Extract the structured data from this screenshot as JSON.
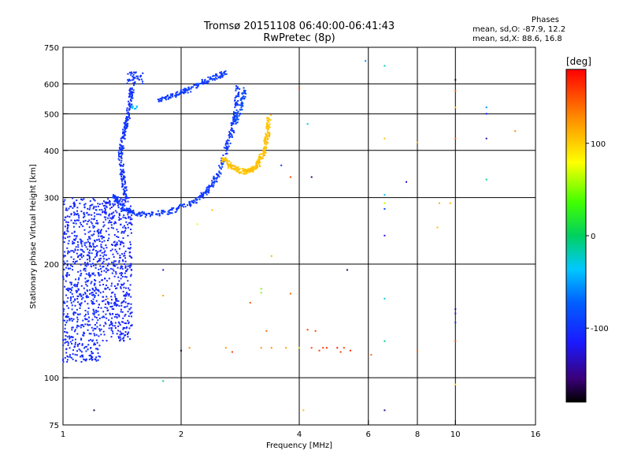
{
  "header": {
    "title_line1": "Tromsø 20151108 06:40:00-06:41:43",
    "title_line2": "RwPretec (8p)",
    "phases_label": "Phases",
    "phases_o": "mean, sd,O: -87.9, 12.2",
    "phases_x": "mean, sd,X:  88.6, 16.8"
  },
  "colorbar": {
    "unit_label": "[deg]",
    "range": [
      -180,
      180
    ],
    "ticks": [
      {
        "value": 100,
        "label": "100"
      },
      {
        "value": 0,
        "label": "0"
      },
      {
        "value": -100,
        "label": "-100"
      }
    ]
  },
  "chart_data": {
    "type": "scatter",
    "title": "Tromsø 20151108 06:40:00-06:41:43",
    "subtitle": "RwPretec (8p)",
    "xlabel": "Frequency [MHz]",
    "ylabel": "Stationary phase Virtual Height [km]",
    "xscale": "log",
    "yscale": "log",
    "xlim": [
      1,
      16
    ],
    "ylim": [
      75,
      750
    ],
    "xticks": [
      1,
      2,
      4,
      6,
      8,
      10,
      16
    ],
    "yticks": [
      75,
      100,
      200,
      300,
      400,
      500,
      600,
      750
    ],
    "xgrid": [
      2,
      4,
      6,
      8,
      10
    ],
    "ygrid": [
      100,
      200,
      300,
      400,
      500,
      600
    ],
    "color_by": "phase [deg]",
    "clusters": [
      {
        "kind": "band",
        "f": [
          1.0,
          1.25
        ],
        "h": [
          110,
          300
        ],
        "phase": -105,
        "n": 700
      },
      {
        "kind": "band",
        "f": [
          1.25,
          1.5
        ],
        "h": [
          125,
          300
        ],
        "phase": -108,
        "n": 500
      },
      {
        "kind": "curve",
        "points": [
          [
            1.45,
            300
          ],
          [
            1.42,
            340
          ],
          [
            1.4,
            390
          ],
          [
            1.42,
            430
          ],
          [
            1.45,
            470
          ],
          [
            1.48,
            530
          ],
          [
            1.5,
            590
          ]
        ],
        "phase": -100,
        "n": 220
      },
      {
        "kind": "curve",
        "points": [
          [
            1.35,
            305
          ],
          [
            1.4,
            285
          ],
          [
            1.5,
            273
          ],
          [
            1.65,
            270
          ],
          [
            1.85,
            275
          ],
          [
            2.05,
            285
          ],
          [
            2.25,
            302
          ],
          [
            2.4,
            325
          ],
          [
            2.5,
            350
          ],
          [
            2.6,
            400
          ],
          [
            2.7,
            450
          ],
          [
            2.75,
            520
          ],
          [
            2.8,
            600
          ]
        ],
        "phase": -96,
        "n": 380
      },
      {
        "kind": "curve",
        "points": [
          [
            1.75,
            545
          ],
          [
            1.9,
            560
          ],
          [
            2.1,
            580
          ],
          [
            2.3,
            610
          ],
          [
            2.5,
            630
          ],
          [
            2.6,
            640
          ]
        ],
        "phase": -95,
        "n": 160
      },
      {
        "kind": "curve",
        "points": [
          [
            2.55,
            380
          ],
          [
            2.7,
            360
          ],
          [
            2.9,
            350
          ],
          [
            3.1,
            360
          ],
          [
            3.25,
            395
          ],
          [
            3.32,
            440
          ],
          [
            3.35,
            490
          ]
        ],
        "phase": 105,
        "n": 260
      },
      {
        "kind": "curve",
        "points": [
          [
            2.75,
            470
          ],
          [
            2.85,
            520
          ],
          [
            2.9,
            580
          ]
        ],
        "phase": -85,
        "n": 60
      },
      {
        "kind": "curve",
        "points": [
          [
            1.48,
            525
          ],
          [
            1.55,
            520
          ]
        ],
        "phase": -40,
        "n": 8
      },
      {
        "kind": "band",
        "f": [
          1.45,
          1.6
        ],
        "h": [
          600,
          645
        ],
        "phase": -100,
        "n": 40
      }
    ],
    "sparse_points": [
      {
        "f": 4.0,
        "h": 585,
        "phase": 150
      },
      {
        "f": 4.2,
        "h": 470,
        "phase": -30
      },
      {
        "f": 3.6,
        "h": 365,
        "phase": -90
      },
      {
        "f": 4.3,
        "h": 340,
        "phase": -160
      },
      {
        "f": 3.8,
        "h": 340,
        "phase": 160
      },
      {
        "f": 5.9,
        "h": 690,
        "phase": -60
      },
      {
        "f": 6.6,
        "h": 670,
        "phase": -20
      },
      {
        "f": 6.6,
        "h": 430,
        "phase": 110
      },
      {
        "f": 6.6,
        "h": 305,
        "phase": -40
      },
      {
        "f": 6.6,
        "h": 290,
        "phase": 60
      },
      {
        "f": 6.6,
        "h": 280,
        "phase": -90
      },
      {
        "f": 6.6,
        "h": 238,
        "phase": -120
      },
      {
        "f": 6.6,
        "h": 162,
        "phase": -30
      },
      {
        "f": 6.6,
        "h": 125,
        "phase": -10
      },
      {
        "f": 6.6,
        "h": 82,
        "phase": -150
      },
      {
        "f": 7.5,
        "h": 330,
        "phase": -130
      },
      {
        "f": 8.0,
        "h": 420,
        "phase": 110
      },
      {
        "f": 8.0,
        "h": 118,
        "phase": 150
      },
      {
        "f": 9.1,
        "h": 290,
        "phase": 110
      },
      {
        "f": 9.0,
        "h": 250,
        "phase": 110
      },
      {
        "f": 9.7,
        "h": 290,
        "phase": 110
      },
      {
        "f": 10.0,
        "h": 615,
        "phase": -170
      },
      {
        "f": 10.0,
        "h": 575,
        "phase": 140
      },
      {
        "f": 10.0,
        "h": 520,
        "phase": 110
      },
      {
        "f": 10.0,
        "h": 430,
        "phase": 150
      },
      {
        "f": 10.0,
        "h": 152,
        "phase": -150
      },
      {
        "f": 10.0,
        "h": 148,
        "phase": -120
      },
      {
        "f": 10.0,
        "h": 140,
        "phase": -110
      },
      {
        "f": 10.0,
        "h": 125,
        "phase": 160
      },
      {
        "f": 10.0,
        "h": 96,
        "phase": 100
      },
      {
        "f": 12.0,
        "h": 520,
        "phase": -60
      },
      {
        "f": 12.0,
        "h": 500,
        "phase": -120
      },
      {
        "f": 12.0,
        "h": 430,
        "phase": -140
      },
      {
        "f": 12.0,
        "h": 335,
        "phase": -20
      },
      {
        "f": 14.2,
        "h": 450,
        "phase": 130
      },
      {
        "f": 3.4,
        "h": 210,
        "phase": 110
      },
      {
        "f": 3.2,
        "h": 172,
        "phase": 45
      },
      {
        "f": 3.2,
        "h": 168,
        "phase": 50
      },
      {
        "f": 3.0,
        "h": 158,
        "phase": 150
      },
      {
        "f": 3.3,
        "h": 133,
        "phase": 140
      },
      {
        "f": 3.2,
        "h": 120,
        "phase": 120
      },
      {
        "f": 3.4,
        "h": 120,
        "phase": 130
      },
      {
        "f": 3.7,
        "h": 120,
        "phase": 120
      },
      {
        "f": 3.8,
        "h": 167,
        "phase": 145
      },
      {
        "f": 4.0,
        "h": 120,
        "phase": 60
      },
      {
        "f": 4.1,
        "h": 82,
        "phase": 110
      },
      {
        "f": 4.2,
        "h": 134,
        "phase": 160
      },
      {
        "f": 4.3,
        "h": 120,
        "phase": 150
      },
      {
        "f": 4.4,
        "h": 133,
        "phase": 155
      },
      {
        "f": 4.5,
        "h": 118,
        "phase": 160
      },
      {
        "f": 4.6,
        "h": 120,
        "phase": 155
      },
      {
        "f": 4.7,
        "h": 120,
        "phase": 165
      },
      {
        "f": 5.0,
        "h": 120,
        "phase": 170
      },
      {
        "f": 5.2,
        "h": 120,
        "phase": 150
      },
      {
        "f": 5.1,
        "h": 117,
        "phase": 160
      },
      {
        "f": 5.3,
        "h": 193,
        "phase": -160
      },
      {
        "f": 5.4,
        "h": 118,
        "phase": 170
      },
      {
        "f": 1.8,
        "h": 193,
        "phase": -120
      },
      {
        "f": 1.8,
        "h": 165,
        "phase": 120
      },
      {
        "f": 1.8,
        "h": 98,
        "phase": -10
      },
      {
        "f": 2.0,
        "h": 118,
        "phase": -170
      },
      {
        "f": 2.1,
        "h": 120,
        "phase": 120
      },
      {
        "f": 2.6,
        "h": 120,
        "phase": 120
      },
      {
        "f": 2.7,
        "h": 117,
        "phase": 160
      },
      {
        "f": 2.4,
        "h": 278,
        "phase": 110
      },
      {
        "f": 2.2,
        "h": 255,
        "phase": 70
      },
      {
        "f": 1.2,
        "h": 82,
        "phase": -160
      },
      {
        "f": 1.3,
        "h": 162,
        "phase": 120
      },
      {
        "f": 6.1,
        "h": 115,
        "phase": 140
      }
    ]
  }
}
